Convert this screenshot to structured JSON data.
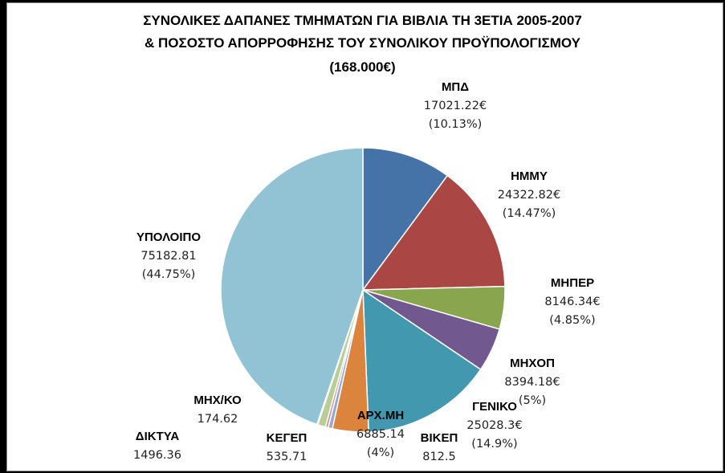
{
  "chart_data": {
    "type": "pie",
    "title": [
      "ΣΥΝΟΛΙΚΕΣ ΔΑΠΑΝΕΣ ΤΜΗΜΑΤΩΝ ΓΙΑ ΒΙΒΛΙΑ ΤΗ 3ΕΤΙΑ 2005-2007",
      "& ΠΟΣΟΣΤΟ ΑΠΟΡΡΟΦΗΣΗΣ ΤΟΥ ΣΥΝΟΛΙΚΟΥ ΠΡΟΫΠΟΛΟΓΙΣΜΟΥ",
      "(168.000€)"
    ],
    "slices": [
      {
        "name": "ΜΠΔ",
        "value": 17021.22,
        "value_label": "17021.22€",
        "pct_label": "(10.13%)",
        "color": "#4572A7"
      },
      {
        "name": "ΗΜΜΥ",
        "value": 24322.82,
        "value_label": "24322.82€",
        "pct_label": "(14.47%)",
        "color": "#AA4643"
      },
      {
        "name": "ΜΗΠΕΡ",
        "value": 8146.34,
        "value_label": "8146.34€",
        "pct_label": "(4.85%)",
        "color": "#89A54E"
      },
      {
        "name": "ΜΗΧΟΠ",
        "value": 8394.18,
        "value_label": "8394.18€",
        "pct_label": "(5%)",
        "color": "#71588F"
      },
      {
        "name": "ΓΕΝΙΚΟ",
        "value": 25028.3,
        "value_label": "25028.3€",
        "pct_label": "(14.9%)",
        "color": "#4198AF"
      },
      {
        "name": "ΑΡΧ.ΜΗ",
        "value": 6885.14,
        "value_label": "6885.14",
        "pct_label": "(4%)",
        "color": "#DB843D"
      },
      {
        "name": "ΒΙΚΕΠ",
        "value": 812.5,
        "value_label": "812.5",
        "pct_label": "",
        "color": "#93A9CF"
      },
      {
        "name": "ΚΕΓΕΠ",
        "value": 535.71,
        "value_label": "535.71",
        "pct_label": "",
        "color": "#D19392"
      },
      {
        "name": "ΔΙΚΤΥΑ",
        "value": 1496.36,
        "value_label": "1496.36",
        "pct_label": "",
        "color": "#B9CD96"
      },
      {
        "name": "ΜΗΧ/ΚΟ",
        "value": 174.62,
        "value_label": "174.62",
        "pct_label": "",
        "color": "#A99BBD"
      },
      {
        "name": "ΥΠΟΛΟΙΠΟ",
        "value": 75182.81,
        "value_label": "75182.81",
        "pct_label": "(44.75%)",
        "color": "#92C3D4"
      }
    ]
  }
}
